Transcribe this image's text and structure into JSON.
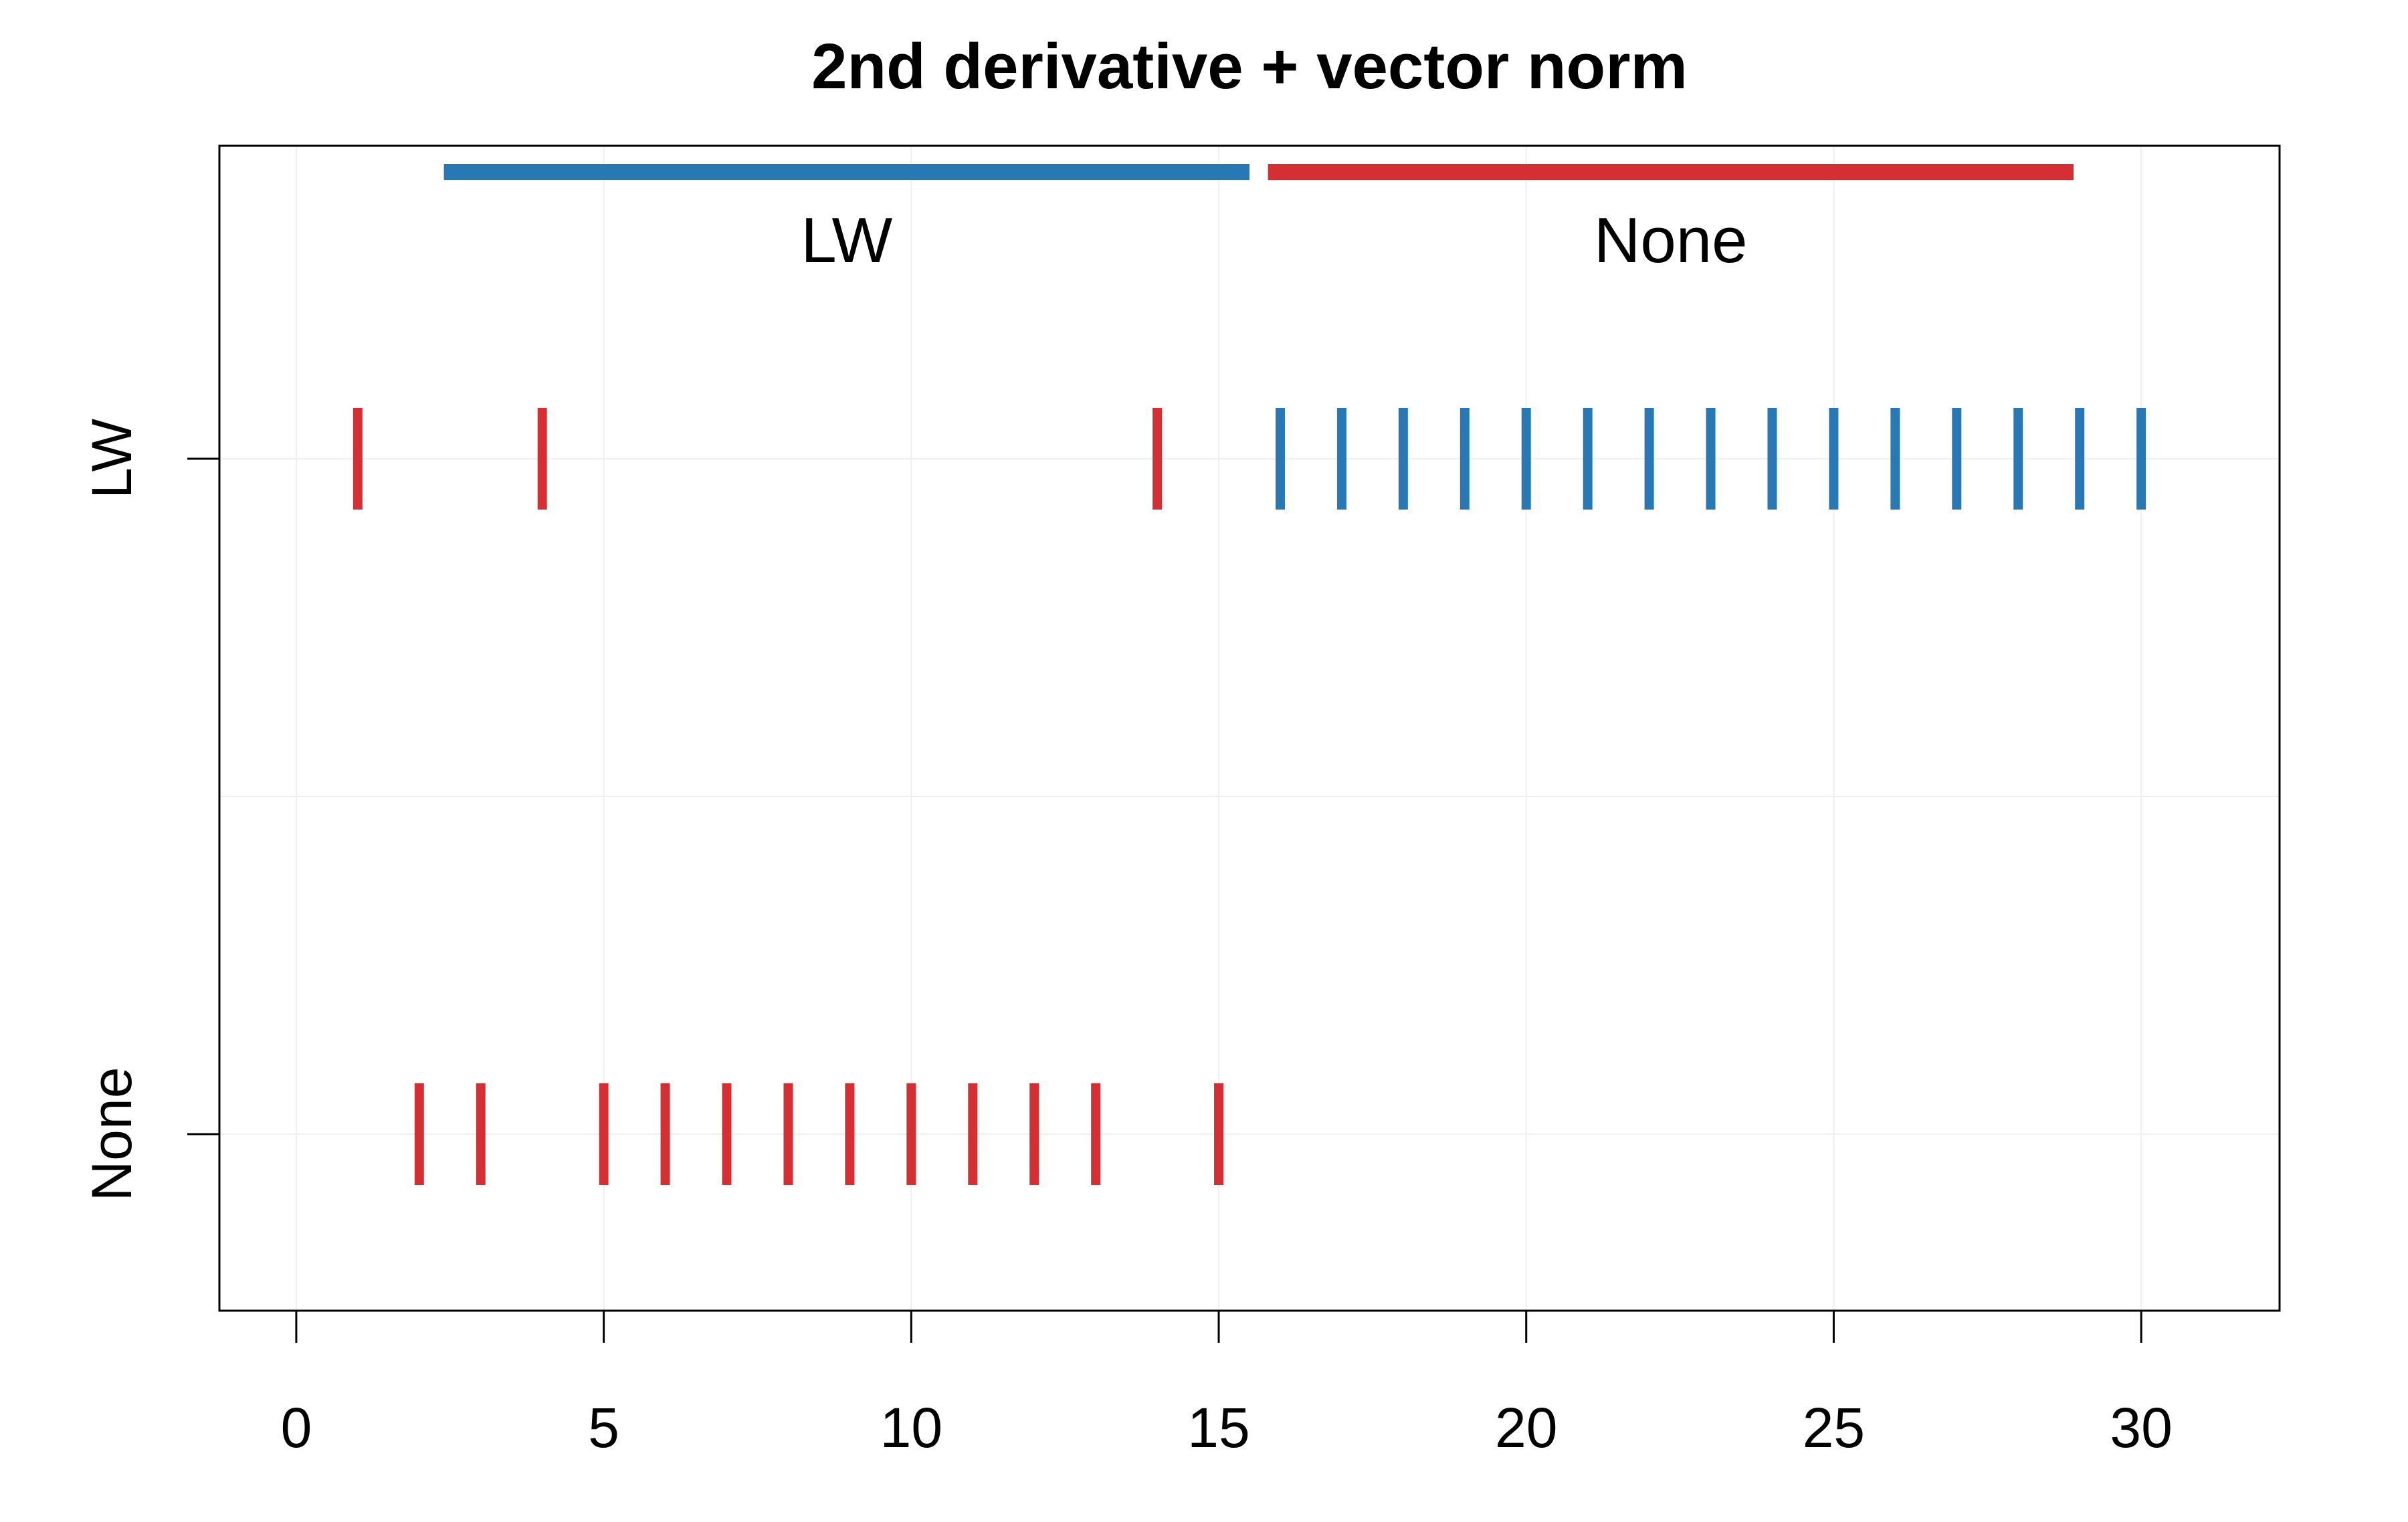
{
  "chart_data": {
    "type": "strip",
    "title": "2nd derivative + vector norm",
    "xlabel": "",
    "ylabel": "",
    "xlim": [
      -1.25,
      32.25
    ],
    "x_ticks": [
      0,
      5,
      10,
      15,
      20,
      25,
      30
    ],
    "y_categories": [
      "LW",
      "None"
    ],
    "grid": true,
    "colors": {
      "LW": "#2878b5",
      "None": "#d62f33"
    },
    "group_bars": [
      {
        "label": "LW",
        "from": 2.4,
        "to": 15.5,
        "color": "#2878b5"
      },
      {
        "label": "None",
        "from": 15.8,
        "to": 28.9,
        "color": "#d62f33"
      }
    ],
    "series": [
      {
        "row": "LW",
        "color": "#d62f33",
        "x": [
          1,
          4,
          14
        ]
      },
      {
        "row": "LW",
        "color": "#2878b5",
        "x": [
          16,
          17,
          18,
          19,
          20,
          21,
          22,
          23,
          24,
          25,
          26,
          27,
          28,
          29,
          30
        ]
      },
      {
        "row": "None",
        "color": "#d62f33",
        "x": [
          2,
          3,
          5,
          6,
          7,
          8,
          9,
          10,
          11,
          12,
          13,
          15
        ]
      }
    ]
  }
}
